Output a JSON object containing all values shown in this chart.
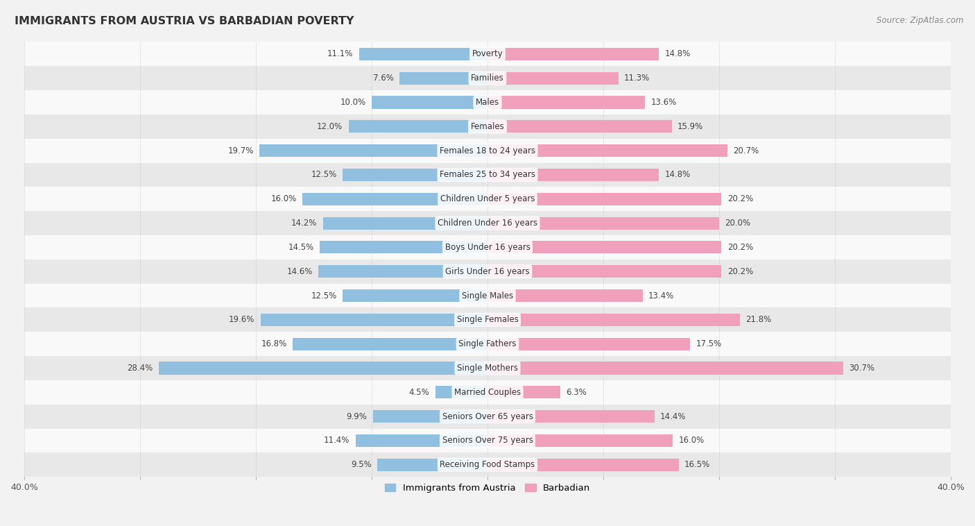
{
  "title": "IMMIGRANTS FROM AUSTRIA VS BARBADIAN POVERTY",
  "source": "Source: ZipAtlas.com",
  "categories": [
    "Poverty",
    "Families",
    "Males",
    "Females",
    "Females 18 to 24 years",
    "Females 25 to 34 years",
    "Children Under 5 years",
    "Children Under 16 years",
    "Boys Under 16 years",
    "Girls Under 16 years",
    "Single Males",
    "Single Females",
    "Single Fathers",
    "Single Mothers",
    "Married Couples",
    "Seniors Over 65 years",
    "Seniors Over 75 years",
    "Receiving Food Stamps"
  ],
  "austria_values": [
    11.1,
    7.6,
    10.0,
    12.0,
    19.7,
    12.5,
    16.0,
    14.2,
    14.5,
    14.6,
    12.5,
    19.6,
    16.8,
    28.4,
    4.5,
    9.9,
    11.4,
    9.5
  ],
  "barbadian_values": [
    14.8,
    11.3,
    13.6,
    15.9,
    20.7,
    14.8,
    20.2,
    20.0,
    20.2,
    20.2,
    13.4,
    21.8,
    17.5,
    30.7,
    6.3,
    14.4,
    16.0,
    16.5
  ],
  "austria_color": "#90bfe0",
  "barbadian_color": "#f0a0bb",
  "austria_label": "Immigrants from Austria",
  "barbadian_label": "Barbadian",
  "xlim": 40.0,
  "background_color": "#f2f2f2",
  "row_bg_light": "#f9f9f9",
  "row_bg_dark": "#e8e8e8",
  "bar_height": 0.52,
  "label_fontsize": 8.5,
  "title_fontsize": 11.5,
  "source_fontsize": 8.5
}
